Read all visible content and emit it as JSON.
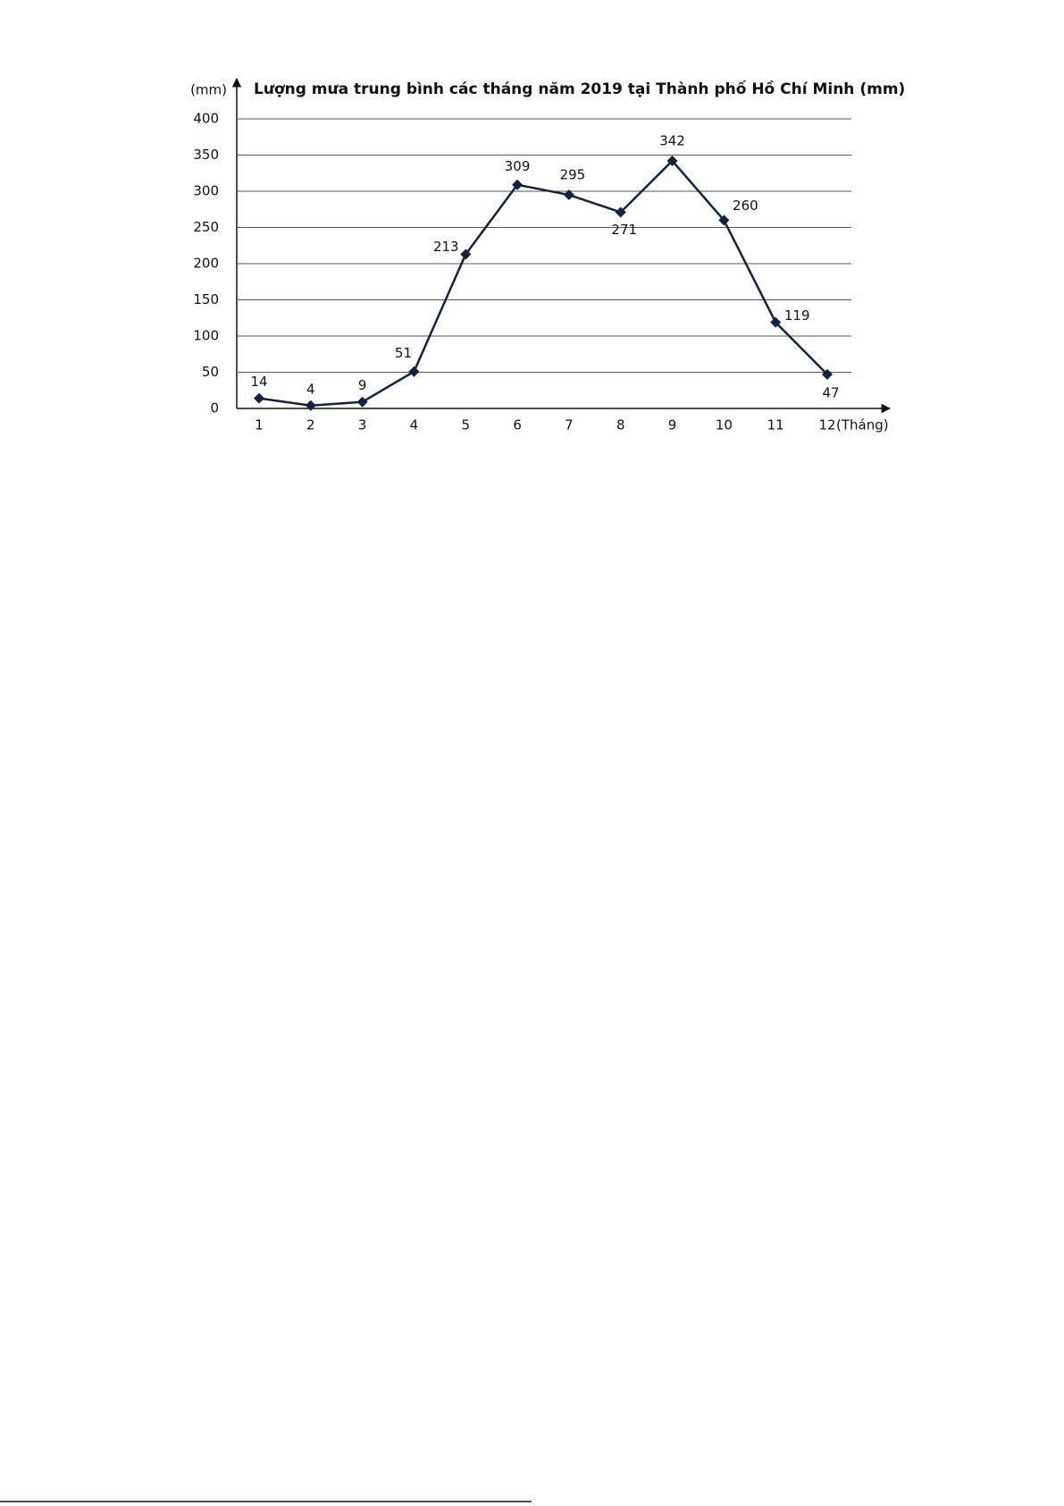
{
  "chart_data": {
    "type": "line",
    "title": "Lượng mưa trung bình các tháng năm 2019 tại Thành phố Hồ Chí Minh (mm)",
    "y_label": "(mm)",
    "x_label": "(Tháng)",
    "categories": [
      "1",
      "2",
      "3",
      "4",
      "5",
      "6",
      "7",
      "8",
      "9",
      "10",
      "11",
      "12"
    ],
    "series": [
      {
        "color": "#15213f",
        "values": [
          14,
          4,
          9,
          51,
          213,
          309,
          295,
          271,
          342,
          260,
          119,
          47
        ]
      }
    ],
    "ylim": [
      0,
      400
    ],
    "yticks": [
      0,
      50,
      100,
      150,
      200,
      250,
      300,
      350,
      400
    ],
    "grid": true
  }
}
